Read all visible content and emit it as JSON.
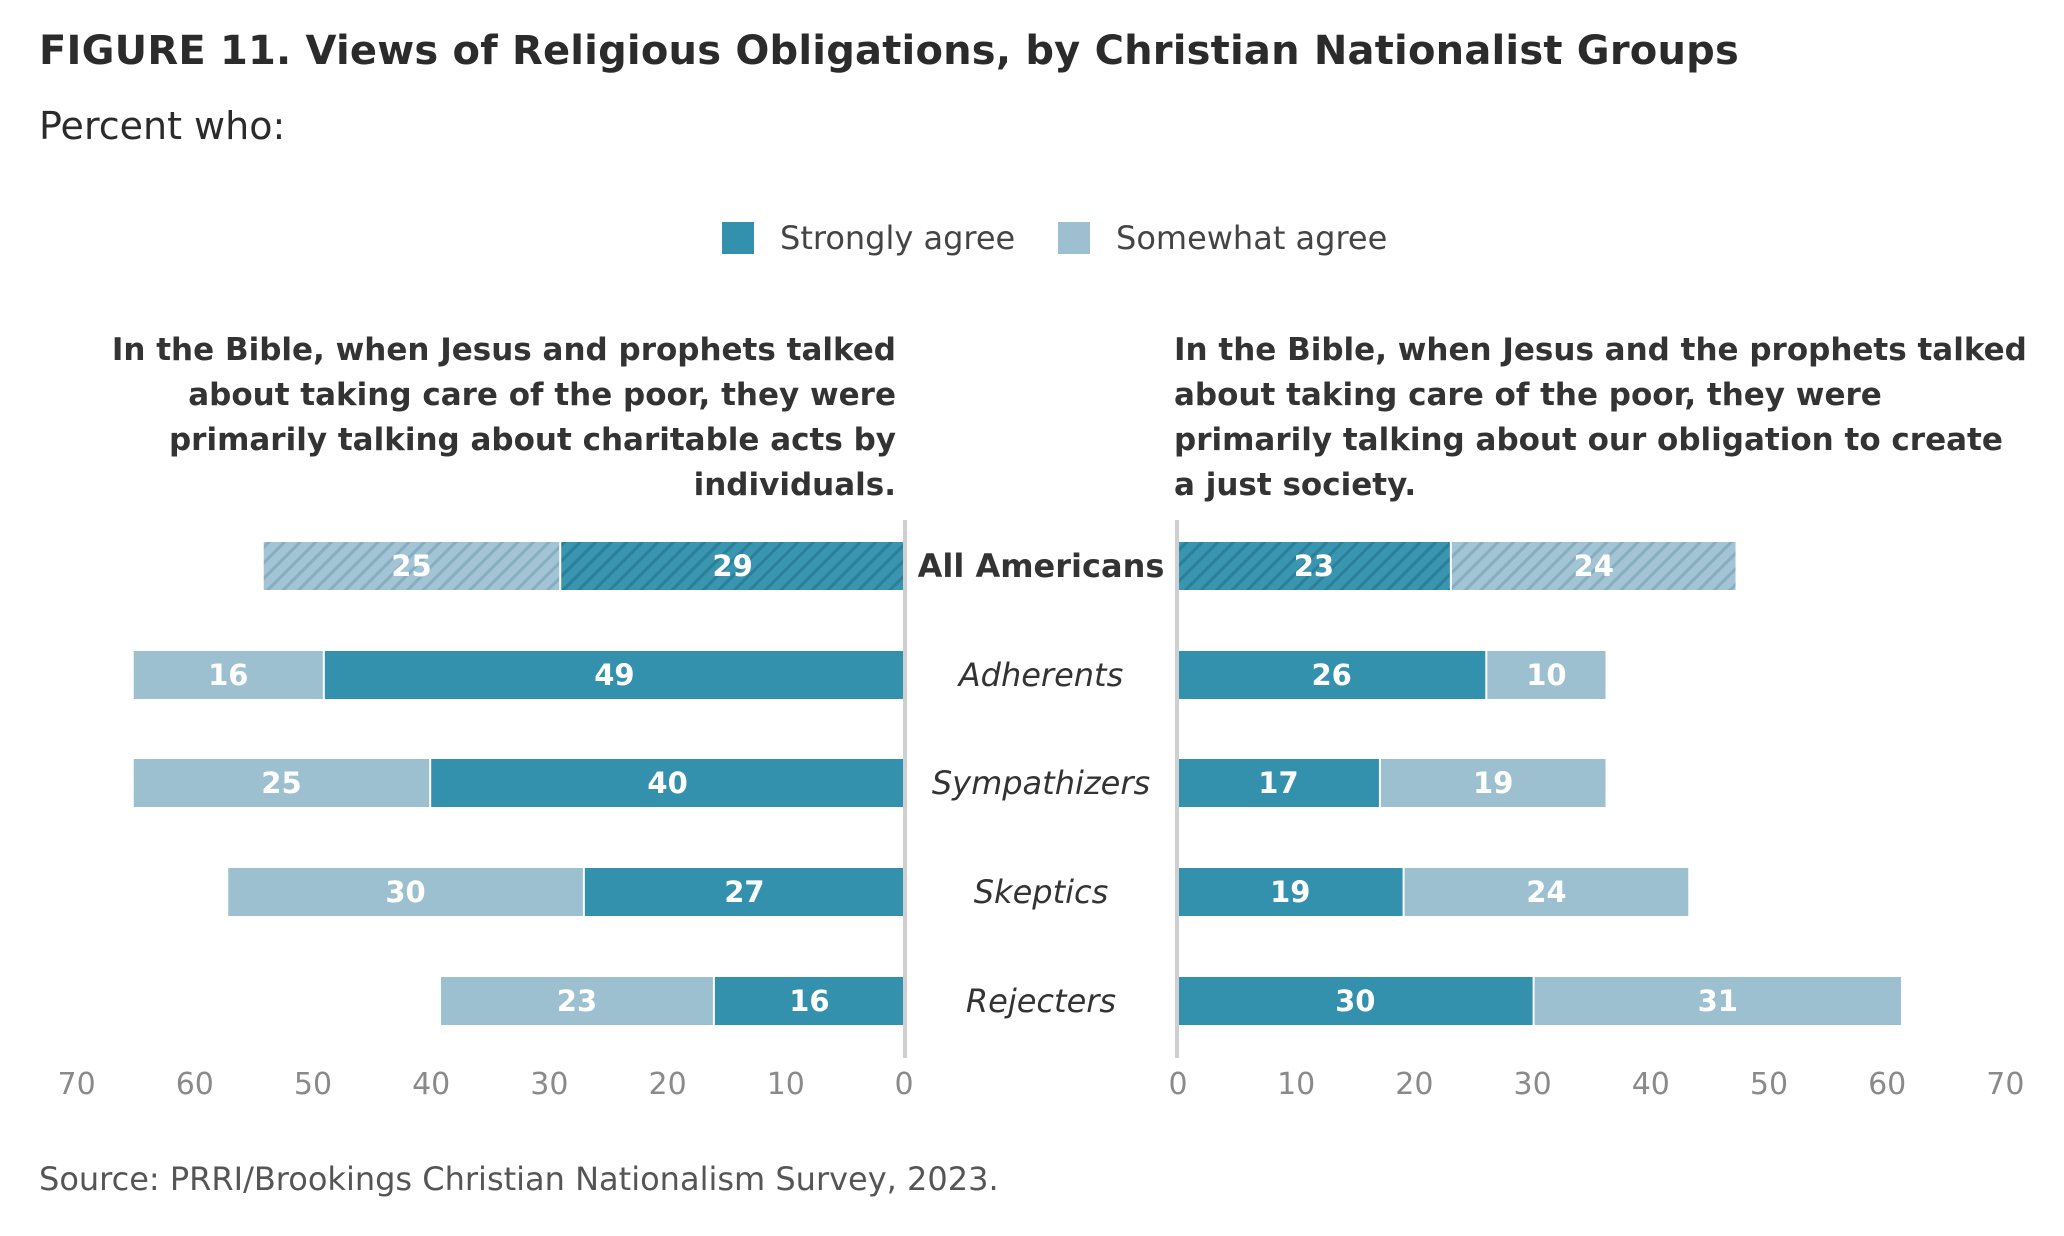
{
  "header": {
    "title": "FIGURE 11. Views of Religious Obligations, by Christian Nationalist Groups",
    "subtitle": "Percent who:"
  },
  "legend": [
    {
      "label": "Strongly agree",
      "color": "#3391ad"
    },
    {
      "label": "Somewhat agree",
      "color": "#9dc0d1"
    }
  ],
  "source": "Source: PRRI/Brookings Christian Nationalism Survey, 2023.",
  "chart_data": {
    "type": "bar",
    "orientation": "horizontal-diverging",
    "categories": [
      "All Americans",
      "Adherents",
      "Sympathizers",
      "Skeptics",
      "Rejecters"
    ],
    "category_styles": [
      "bold",
      "italic",
      "italic",
      "italic",
      "italic"
    ],
    "hatched_category": "All Americans",
    "colors": {
      "strongly": "#3391ad",
      "somewhat": "#9dc0d1"
    },
    "xlim": [
      0,
      70
    ],
    "ticks": [
      0,
      10,
      20,
      30,
      40,
      50,
      60,
      70
    ],
    "panels": [
      {
        "id": "left",
        "title": "In the Bible, when Jesus and prophets talked about taking care of the poor, they were primarily talking about charitable acts by individuals.",
        "series": [
          {
            "name": "Strongly agree",
            "values": [
              29,
              49,
              40,
              27,
              16
            ]
          },
          {
            "name": "Somewhat agree",
            "values": [
              25,
              16,
              25,
              30,
              23
            ]
          }
        ]
      },
      {
        "id": "right",
        "title": "In the Bible, when Jesus and the prophets talked about taking care of the poor, they were primarily talking about our obligation to create a just society.",
        "series": [
          {
            "name": "Strongly agree",
            "values": [
              23,
              26,
              17,
              19,
              30
            ]
          },
          {
            "name": "Somewhat agree",
            "values": [
              24,
              10,
              19,
              24,
              31
            ]
          }
        ]
      }
    ]
  }
}
